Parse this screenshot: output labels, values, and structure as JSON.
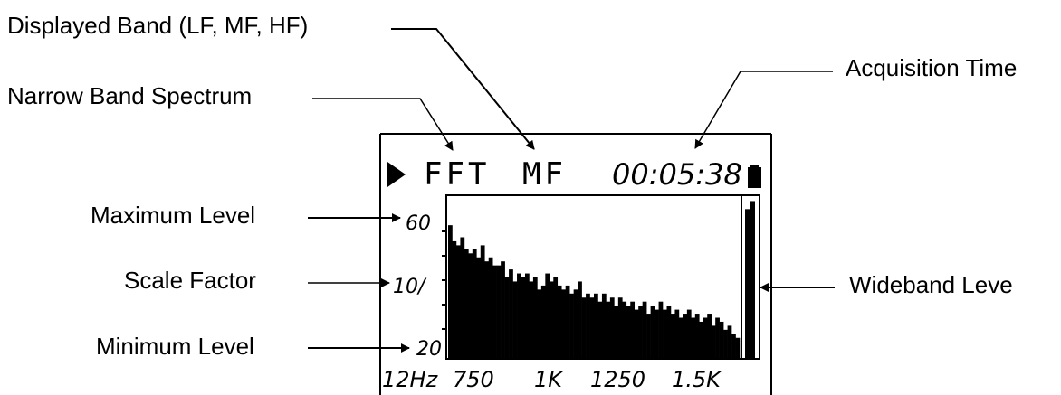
{
  "callouts": {
    "displayed_band": "Displayed Band (LF, MF, HF)",
    "narrow_band": "Narrow Band Spectrum",
    "acquisition_time": "Acquisition Time",
    "maximum_level": "Maximum Level",
    "scale_factor": "Scale Factor",
    "minimum_level": "Minimum Level",
    "wideband_level": "Wideband Leve"
  },
  "screen": {
    "mode": "FFT",
    "band": "MF",
    "time": "00:05:38",
    "max_level": "60",
    "scale": "10/",
    "min_level": "20",
    "x_ticks": [
      "12Hz",
      "750",
      "1K",
      "1250",
      "1.5K"
    ]
  },
  "spectrum": {
    "bars": [
      53,
      49,
      48,
      50,
      47,
      46,
      47,
      45,
      48,
      44,
      45,
      43,
      43,
      44,
      40,
      42,
      39,
      41,
      40,
      41,
      39,
      40,
      37,
      38,
      41,
      39,
      40,
      38,
      37,
      38,
      36,
      37,
      39,
      35,
      36,
      35,
      36,
      34,
      36,
      34,
      35,
      33,
      35,
      34,
      33,
      34,
      32,
      33,
      34,
      31,
      33,
      32,
      34,
      32,
      33,
      31,
      32,
      30,
      31,
      32,
      30,
      31,
      29,
      30,
      31,
      28,
      30,
      29,
      27,
      28,
      26,
      25
    ],
    "wideband": [
      57,
      59
    ]
  },
  "colors": {
    "ink": "#000000",
    "background": "#ffffff"
  }
}
